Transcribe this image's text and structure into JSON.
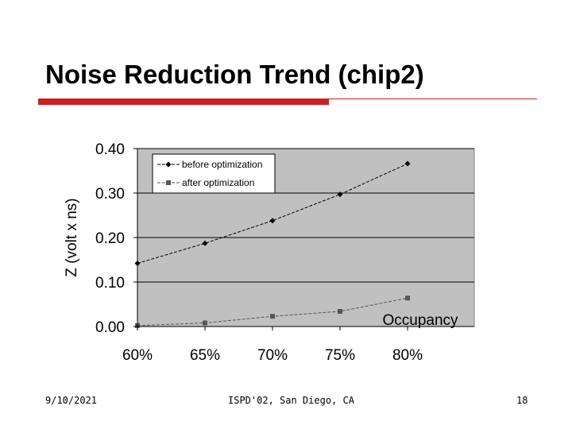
{
  "slide": {
    "title": "Noise Reduction Trend (chip2)",
    "footer_date": "9/10/2021",
    "footer_conference": "ISPD'02, San Diego, CA",
    "footer_page": "18",
    "accent_color": "#cc1f1f"
  },
  "chart_data": {
    "type": "line",
    "title": "",
    "xlabel": "Occupancy",
    "ylabel": "Z (volt x ns)",
    "categories": [
      "60%",
      "65%",
      "70%",
      "75%",
      "80%"
    ],
    "y_ticks": [
      "0.00",
      "0.10",
      "0.20",
      "0.30",
      "0.40"
    ],
    "ylim": [
      0,
      0.4
    ],
    "grid": true,
    "plot_background": "#c0c0c0",
    "legend_position": "top-left",
    "series": [
      {
        "name": "before optimization",
        "values": [
          0.142,
          0.187,
          0.238,
          0.297,
          0.366
        ],
        "color": "#000000",
        "marker": "diamond"
      },
      {
        "name": "after optimization",
        "values": [
          0.002,
          0.008,
          0.023,
          0.034,
          0.064
        ],
        "color": "#555555",
        "marker": "square"
      }
    ]
  }
}
